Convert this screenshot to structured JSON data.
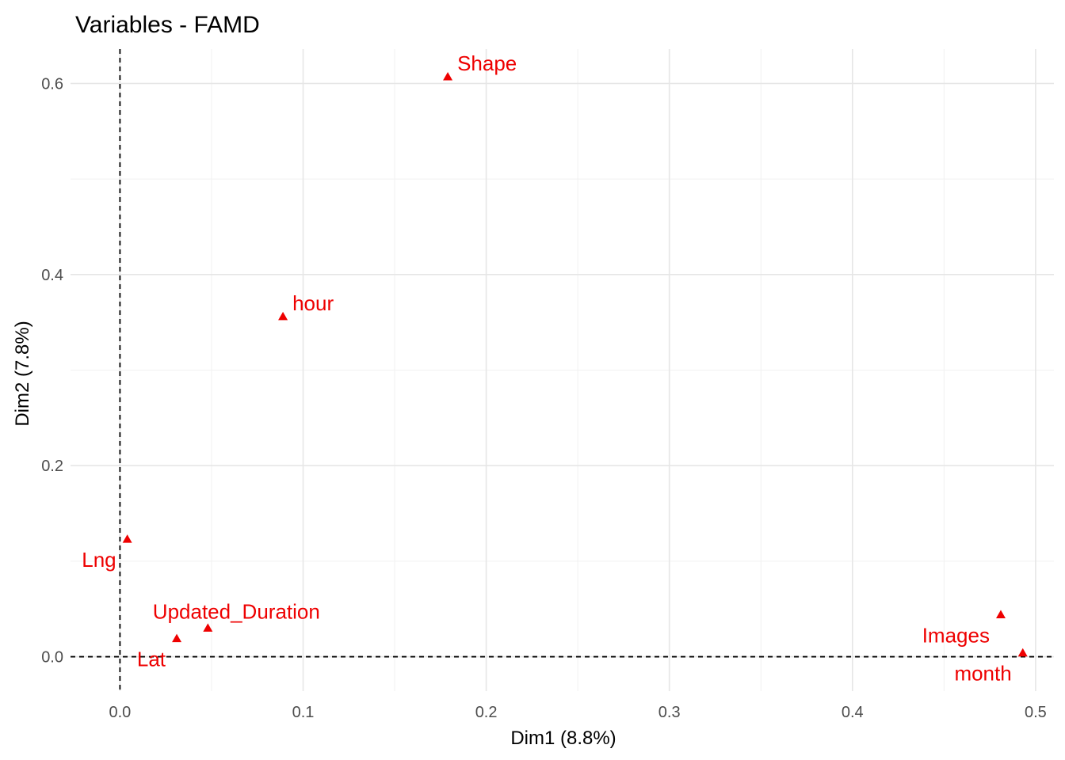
{
  "chart_data": {
    "type": "scatter",
    "title": "Variables - FAMD",
    "xlabel": "Dim1 (8.8%)",
    "ylabel": "Dim2 (7.8%)",
    "xlim": [
      -0.027,
      0.51
    ],
    "ylim": [
      -0.036,
      0.636
    ],
    "x_ticks": [
      0.0,
      0.1,
      0.2,
      0.3,
      0.4,
      0.5
    ],
    "x_tick_labels": [
      "0.0",
      "0.1",
      "0.2",
      "0.3",
      "0.4",
      "0.5"
    ],
    "y_ticks": [
      0.0,
      0.2,
      0.4,
      0.6
    ],
    "y_tick_labels": [
      "0.0",
      "0.2",
      "0.4",
      "0.6"
    ],
    "x_minor_gridlines": [
      0.05,
      0.15,
      0.25,
      0.35,
      0.45
    ],
    "y_minor_gridlines": [
      0.1,
      0.3,
      0.5
    ],
    "grid": true,
    "reference_lines": {
      "x": 0,
      "y": 0,
      "style": "dashed"
    },
    "marker": "triangle",
    "point_color": "#ee0000",
    "points": [
      {
        "label": "Shape",
        "x": 0.179,
        "y": 0.607,
        "label_pos": "upper-right"
      },
      {
        "label": "hour",
        "x": 0.089,
        "y": 0.356,
        "label_pos": "upper-right"
      },
      {
        "label": "Lng",
        "x": 0.004,
        "y": 0.123,
        "label_pos": "lower-left"
      },
      {
        "label": "Updated_Duration",
        "x": 0.048,
        "y": 0.03,
        "label_pos": "upper-center"
      },
      {
        "label": "Lat",
        "x": 0.031,
        "y": 0.019,
        "label_pos": "lower-left"
      },
      {
        "label": "Images",
        "x": 0.481,
        "y": 0.044,
        "label_pos": "lower-left"
      },
      {
        "label": "month",
        "x": 0.493,
        "y": 0.004,
        "label_pos": "lower-left"
      }
    ]
  }
}
